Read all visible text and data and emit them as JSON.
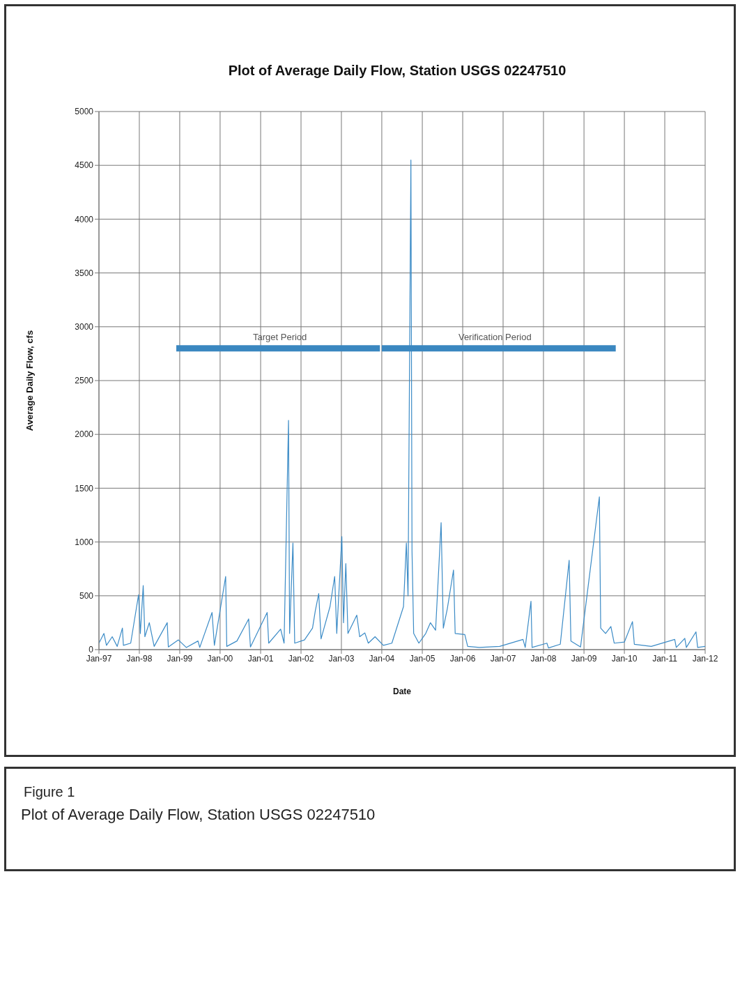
{
  "chart_data": {
    "type": "line",
    "title": "Plot of Average Daily Flow, Station USGS 02247510",
    "xlabel": "Date",
    "ylabel": "Average Daily Flow, cfs",
    "annotations": [
      "Figure 1",
      "Plot of Average Daily Flow, Station USGS 02247510"
    ],
    "x": [
      "1997-01-01",
      "1997-02-15",
      "1997-03-10",
      "1997-05-01",
      "1997-06-15",
      "1997-08-01",
      "1997-08-10",
      "1997-10-15",
      "1997-12-25",
      "1998-01-10",
      "1998-02-05",
      "1998-02-20",
      "1998-04-01",
      "1998-05-15",
      "1998-09-10",
      "1998-09-20",
      "1998-12-20",
      "1999-03-01",
      "1999-06-15",
      "1999-07-01",
      "1999-10-20",
      "1999-11-10",
      "2000-02-20",
      "2000-03-01",
      "2000-06-01",
      "2000-09-15",
      "2000-10-01",
      "2001-03-01",
      "2001-03-15",
      "2001-07-01",
      "2001-08-01",
      "2001-09-10",
      "2001-09-20",
      "2001-10-20",
      "2001-11-05",
      "2002-02-01",
      "2002-04-15",
      "2002-05-10",
      "2002-06-10",
      "2002-07-01",
      "2002-09-20",
      "2002-11-01",
      "2002-11-20",
      "2003-01-05",
      "2003-01-20",
      "2003-02-10",
      "2003-03-01",
      "2003-05-20",
      "2003-06-15",
      "2003-08-01",
      "2003-09-01",
      "2003-11-01",
      "2004-01-15",
      "2004-04-01",
      "2004-07-15",
      "2004-08-10",
      "2004-08-25",
      "2004-09-20",
      "2004-09-30",
      "2004-10-15",
      "2004-12-01",
      "2005-02-01",
      "2005-03-15",
      "2005-05-01",
      "2005-06-20",
      "2005-07-10",
      "2005-08-15",
      "2005-10-10",
      "2005-10-25",
      "2006-01-20",
      "2006-02-15",
      "2006-06-01",
      "2006-12-01",
      "2007-06-30",
      "2007-07-20",
      "2007-09-10",
      "2007-09-20",
      "2008-02-01",
      "2008-02-15",
      "2008-06-01",
      "2008-08-20",
      "2008-09-05",
      "2008-12-01",
      "2009-05-20",
      "2009-06-01",
      "2009-07-15",
      "2009-09-01",
      "2009-10-01",
      "2010-01-01",
      "2010-03-15",
      "2010-04-01",
      "2010-09-01",
      "2011-04-01",
      "2011-04-15",
      "2011-07-01",
      "2011-07-15",
      "2011-10-10",
      "2011-10-25",
      "2012-01-01"
    ],
    "series": [
      {
        "color": "#3b8bc6",
        "values": [
          60,
          150,
          40,
          120,
          30,
          200,
          40,
          60,
          510,
          150,
          595,
          120,
          250,
          30,
          250,
          25,
          90,
          20,
          80,
          20,
          345,
          40,
          680,
          30,
          80,
          285,
          25,
          345,
          60,
          190,
          60,
          2130,
          150,
          990,
          60,
          90,
          200,
          360,
          520,
          100,
          400,
          680,
          150,
          1050,
          250,
          800,
          150,
          320,
          120,
          155,
          60,
          120,
          40,
          60,
          400,
          990,
          500,
          4550,
          915,
          150,
          60,
          150,
          250,
          180,
          1180,
          200,
          380,
          740,
          150,
          140,
          30,
          20,
          30,
          95,
          20,
          450,
          20,
          60,
          15,
          50,
          830,
          80,
          25,
          1420,
          200,
          150,
          215,
          60,
          70,
          260,
          50,
          30,
          95,
          20,
          105,
          20,
          165,
          20,
          30
        ]
      },
      {
        "name": "Target Period",
        "color": "#3a87c0",
        "x": [
          "1998-12-01",
          "2003-12-15"
        ],
        "values": [
          2800,
          2800
        ]
      },
      {
        "name": "Verification Period",
        "color": "#3a87c0",
        "x": [
          "2004-01-01",
          "2009-10-15"
        ],
        "values": [
          2800,
          2800
        ]
      }
    ],
    "xlim": [
      "1997-01-01",
      "2012-01-01"
    ],
    "xticks": [
      {
        "value": "1997-01-01",
        "label": "Jan-97"
      },
      {
        "value": "1998-01-01",
        "label": "Jan-98"
      },
      {
        "value": "1999-01-01",
        "label": "Jan-99"
      },
      {
        "value": "2000-01-01",
        "label": "Jan-00"
      },
      {
        "value": "2001-01-01",
        "label": "Jan-01"
      },
      {
        "value": "2002-01-01",
        "label": "Jan-02"
      },
      {
        "value": "2003-01-01",
        "label": "Jan-03"
      },
      {
        "value": "2004-01-01",
        "label": "Jan-04"
      },
      {
        "value": "2005-01-01",
        "label": "Jan-05"
      },
      {
        "value": "2006-01-01",
        "label": "Jan-06"
      },
      {
        "value": "2007-01-01",
        "label": "Jan-07"
      },
      {
        "value": "2008-01-01",
        "label": "Jan-08"
      },
      {
        "value": "2009-01-01",
        "label": "Jan-09"
      },
      {
        "value": "2010-01-01",
        "label": "Jan-10"
      },
      {
        "value": "2011-01-01",
        "label": "Jan-11"
      },
      {
        "value": "2012-01-01",
        "label": "Jan-12"
      }
    ],
    "ylim": [
      0,
      5000
    ],
    "yticks": [
      0,
      500,
      1000,
      1500,
      2000,
      2500,
      3000,
      3500,
      4000,
      4500,
      5000
    ],
    "grid": true,
    "marker": "none",
    "line_style": "solid",
    "legend": false
  }
}
